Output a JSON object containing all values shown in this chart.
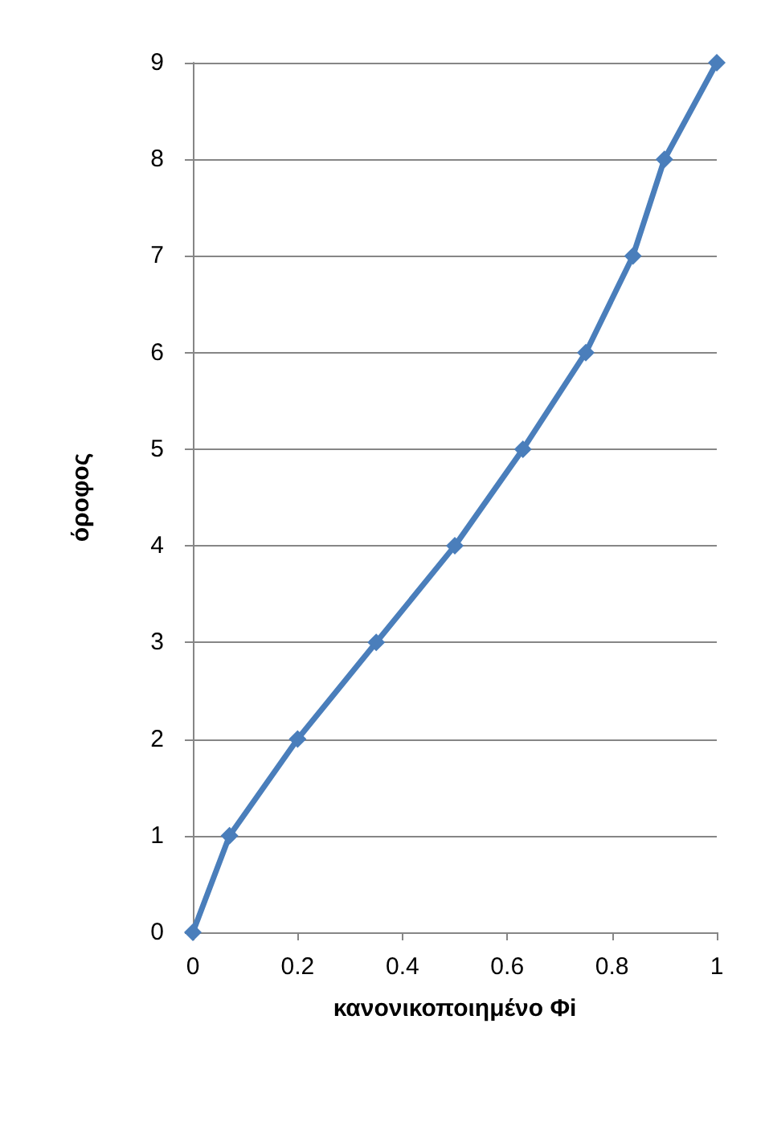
{
  "chart_data": {
    "type": "line",
    "xlabel": "κανονικοποιημένο Φi",
    "ylabel": "όροφος",
    "x": [
      0,
      0.07,
      0.2,
      0.35,
      0.5,
      0.63,
      0.75,
      0.84,
      0.9,
      1
    ],
    "series": [
      {
        "color": "#4a7ebb",
        "values": [
          0,
          1,
          2,
          3,
          4,
          5,
          6,
          7,
          8,
          9
        ]
      }
    ],
    "xlim": [
      0,
      1
    ],
    "xticks": [
      0,
      0.2,
      0.4,
      0.6,
      0.8,
      1
    ],
    "ylim": [
      0,
      9
    ],
    "yticks": [
      0,
      1,
      2,
      3,
      4,
      5,
      6,
      7,
      8,
      9
    ],
    "grid": "y",
    "marker": "diamond",
    "line_style": "solid"
  }
}
